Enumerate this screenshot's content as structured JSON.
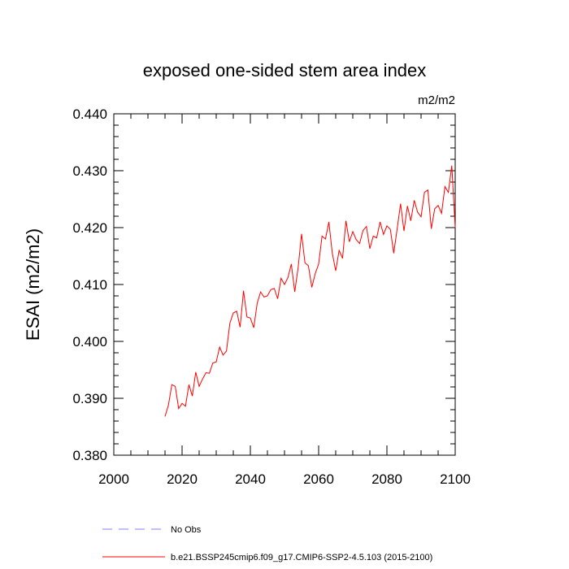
{
  "chart_data": {
    "type": "line",
    "title": "exposed one-sided stem area index",
    "units": "m2/m2",
    "xlabel": "",
    "ylabel": "ESAI  (m2/m2)",
    "xlim": [
      2000,
      2100
    ],
    "ylim": [
      0.38,
      0.44
    ],
    "x_ticks": [
      2000,
      2020,
      2040,
      2060,
      2080,
      2100
    ],
    "x_tick_labels": [
      "2000",
      "2020",
      "2040",
      "2060",
      "2080",
      "2100"
    ],
    "y_ticks": [
      0.38,
      0.39,
      0.4,
      0.41,
      0.42,
      0.43,
      0.44
    ],
    "y_tick_labels": [
      "0.380",
      "0.390",
      "0.400",
      "0.410",
      "0.420",
      "0.430",
      "0.440"
    ],
    "grid": false,
    "legend_position": "bottom",
    "series": [
      {
        "name": "b.e21.BSSP245cmip6.f09_g17.CMIP6-SSP2-4.5.103 (2015-2100)",
        "color": "#ff0000",
        "style": "solid",
        "x": [
          2015,
          2016,
          2017,
          2018,
          2019,
          2020,
          2021,
          2022,
          2023,
          2024,
          2025,
          2026,
          2027,
          2028,
          2029,
          2030,
          2031,
          2032,
          2033,
          2034,
          2035,
          2036,
          2037,
          2038,
          2039,
          2040,
          2041,
          2042,
          2043,
          2044,
          2045,
          2046,
          2047,
          2048,
          2049,
          2050,
          2051,
          2052,
          2053,
          2054,
          2055,
          2056,
          2057,
          2058,
          2059,
          2060,
          2061,
          2062,
          2063,
          2064,
          2065,
          2066,
          2067,
          2068,
          2069,
          2070,
          2071,
          2072,
          2073,
          2074,
          2075,
          2076,
          2077,
          2078,
          2079,
          2080,
          2081,
          2082,
          2083,
          2084,
          2085,
          2086,
          2087,
          2088,
          2089,
          2090,
          2091,
          2092,
          2093,
          2094,
          2095,
          2096,
          2097,
          2098,
          2099,
          2100
        ],
        "values": [
          0.3868,
          0.3888,
          0.3924,
          0.3921,
          0.3882,
          0.3891,
          0.3886,
          0.3924,
          0.3904,
          0.3946,
          0.3921,
          0.3934,
          0.3945,
          0.3944,
          0.3962,
          0.3964,
          0.399,
          0.3976,
          0.3983,
          0.4032,
          0.405,
          0.4053,
          0.4025,
          0.4089,
          0.4043,
          0.4041,
          0.4024,
          0.4067,
          0.4087,
          0.4078,
          0.408,
          0.4091,
          0.4093,
          0.4075,
          0.4111,
          0.41,
          0.4112,
          0.4136,
          0.4087,
          0.413,
          0.4189,
          0.4138,
          0.4133,
          0.4095,
          0.4119,
          0.4136,
          0.4185,
          0.418,
          0.421,
          0.4155,
          0.4124,
          0.416,
          0.4146,
          0.4212,
          0.4175,
          0.4193,
          0.4179,
          0.4172,
          0.4195,
          0.4202,
          0.4163,
          0.4185,
          0.4182,
          0.421,
          0.4188,
          0.4203,
          0.4197,
          0.4155,
          0.4198,
          0.4242,
          0.4194,
          0.4238,
          0.4212,
          0.4248,
          0.4227,
          0.4219,
          0.4262,
          0.4266,
          0.4198,
          0.4233,
          0.4239,
          0.4225,
          0.4272,
          0.4262,
          0.4309,
          0.42
        ]
      },
      {
        "name": "No Obs",
        "color": "#8080ff",
        "style": "dashed",
        "x": [],
        "values": []
      }
    ]
  }
}
